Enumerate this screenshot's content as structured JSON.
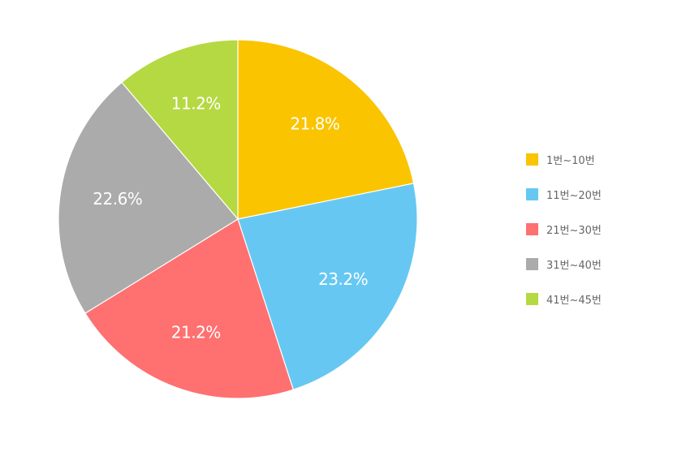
{
  "chart_data": {
    "type": "pie",
    "categories": [
      "1번~10번",
      "11번~20번",
      "21번~30번",
      "31번~40번",
      "41번~45번"
    ],
    "values": [
      21.8,
      23.2,
      21.2,
      22.6,
      11.2
    ],
    "data_labels": [
      "21.8%",
      "23.2%",
      "21.2%",
      "22.6%",
      "11.2%"
    ],
    "colors": [
      "#FAC400",
      "#66C8F2",
      "#FF7070",
      "#ABABAB",
      "#B5D942"
    ],
    "title": "",
    "legend_position": "right",
    "start_angle": "top",
    "direction": "clockwise"
  }
}
